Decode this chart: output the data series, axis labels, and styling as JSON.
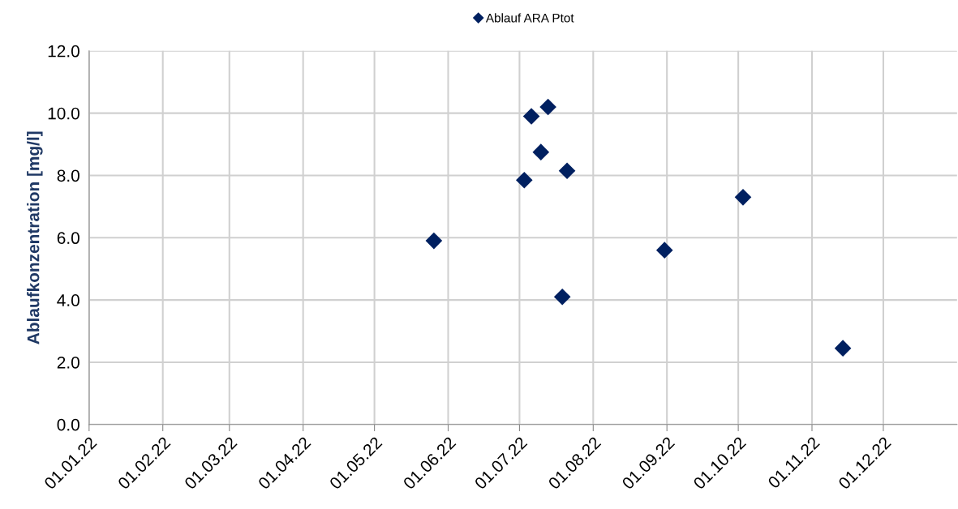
{
  "chart_data": {
    "type": "scatter",
    "ylabel": "Ablaufkonzentration [mg/l]",
    "series": [
      {
        "name": "Ablauf ARA Ptot",
        "color": "#002060",
        "x": [
          "2022-05-26",
          "2022-07-03",
          "2022-07-06",
          "2022-07-10",
          "2022-07-13",
          "2022-07-19",
          "2022-07-21",
          "2022-08-31",
          "2022-10-03",
          "2022-11-14"
        ],
        "values": [
          5.9,
          7.85,
          9.9,
          8.75,
          10.2,
          4.1,
          8.15,
          5.6,
          7.3,
          2.45
        ]
      }
    ],
    "marker": "diamond",
    "grid": true,
    "legend": "top",
    "xlim": [
      "2022-01-01",
      "2023-01-01"
    ],
    "xticks": [
      {
        "value": "2022-01-01",
        "label": "01.01.22"
      },
      {
        "value": "2022-02-01",
        "label": "01.02.22"
      },
      {
        "value": "2022-03-01",
        "label": "01.03.22"
      },
      {
        "value": "2022-04-01",
        "label": "01.04.22"
      },
      {
        "value": "2022-05-01",
        "label": "01.05.22"
      },
      {
        "value": "2022-06-01",
        "label": "01.06.22"
      },
      {
        "value": "2022-07-01",
        "label": "01.07.22"
      },
      {
        "value": "2022-08-01",
        "label": "01.08.22"
      },
      {
        "value": "2022-09-01",
        "label": "01.09.22"
      },
      {
        "value": "2022-10-01",
        "label": "01.10.22"
      },
      {
        "value": "2022-11-01",
        "label": "01.11.22"
      },
      {
        "value": "2022-12-01",
        "label": "01.12.22"
      }
    ],
    "ylim": [
      0,
      12
    ],
    "yticks": [
      {
        "value": 0,
        "label": "0.0"
      },
      {
        "value": 2,
        "label": "2.0"
      },
      {
        "value": 4,
        "label": "4.0"
      },
      {
        "value": 6,
        "label": "6.0"
      },
      {
        "value": 8,
        "label": "8.0"
      },
      {
        "value": 10,
        "label": "10.0"
      },
      {
        "value": 12,
        "label": "12.0"
      }
    ]
  }
}
